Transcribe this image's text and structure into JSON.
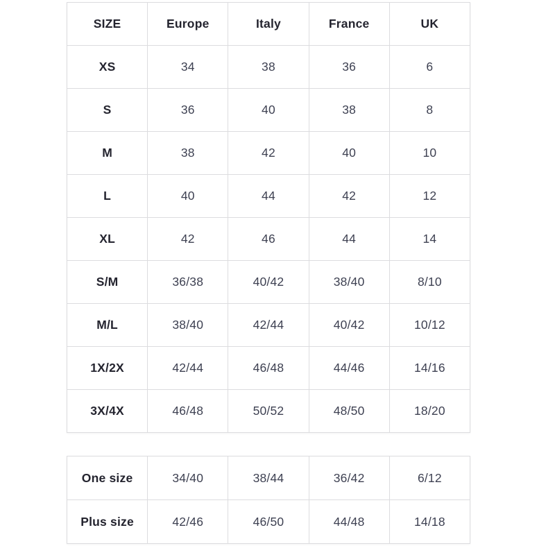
{
  "colors": {
    "background": "#ffffff",
    "border": "#dcdcdf",
    "header_text": "#24242f",
    "value_text": "#3e4152"
  },
  "size_chart": {
    "headers": {
      "size": "SIZE",
      "europe": "Europe",
      "italy": "Italy",
      "france": "France",
      "uk": "UK"
    },
    "rows": [
      {
        "size": "XS",
        "europe": "34",
        "italy": "38",
        "france": "36",
        "uk": "6"
      },
      {
        "size": "S",
        "europe": "36",
        "italy": "40",
        "france": "38",
        "uk": "8"
      },
      {
        "size": "M",
        "europe": "38",
        "italy": "42",
        "france": "40",
        "uk": "10"
      },
      {
        "size": "L",
        "europe": "40",
        "italy": "44",
        "france": "42",
        "uk": "12"
      },
      {
        "size": "XL",
        "europe": "42",
        "italy": "46",
        "france": "44",
        "uk": "14"
      },
      {
        "size": "S/M",
        "europe": "36/38",
        "italy": "40/42",
        "france": "38/40",
        "uk": "8/10"
      },
      {
        "size": "M/L",
        "europe": "38/40",
        "italy": "42/44",
        "france": "40/42",
        "uk": "10/12"
      },
      {
        "size": "1X/2X",
        "europe": "42/44",
        "italy": "46/48",
        "france": "44/46",
        "uk": "14/16"
      },
      {
        "size": "3X/4X",
        "europe": "46/48",
        "italy": "50/52",
        "france": "48/50",
        "uk": "18/20"
      }
    ]
  },
  "special_sizes": {
    "rows": [
      {
        "size": "One size",
        "europe": "34/40",
        "italy": "38/44",
        "france": "36/42",
        "uk": "6/12"
      },
      {
        "size": "Plus size",
        "europe": "42/46",
        "italy": "46/50",
        "france": "44/48",
        "uk": "14/18"
      }
    ]
  }
}
